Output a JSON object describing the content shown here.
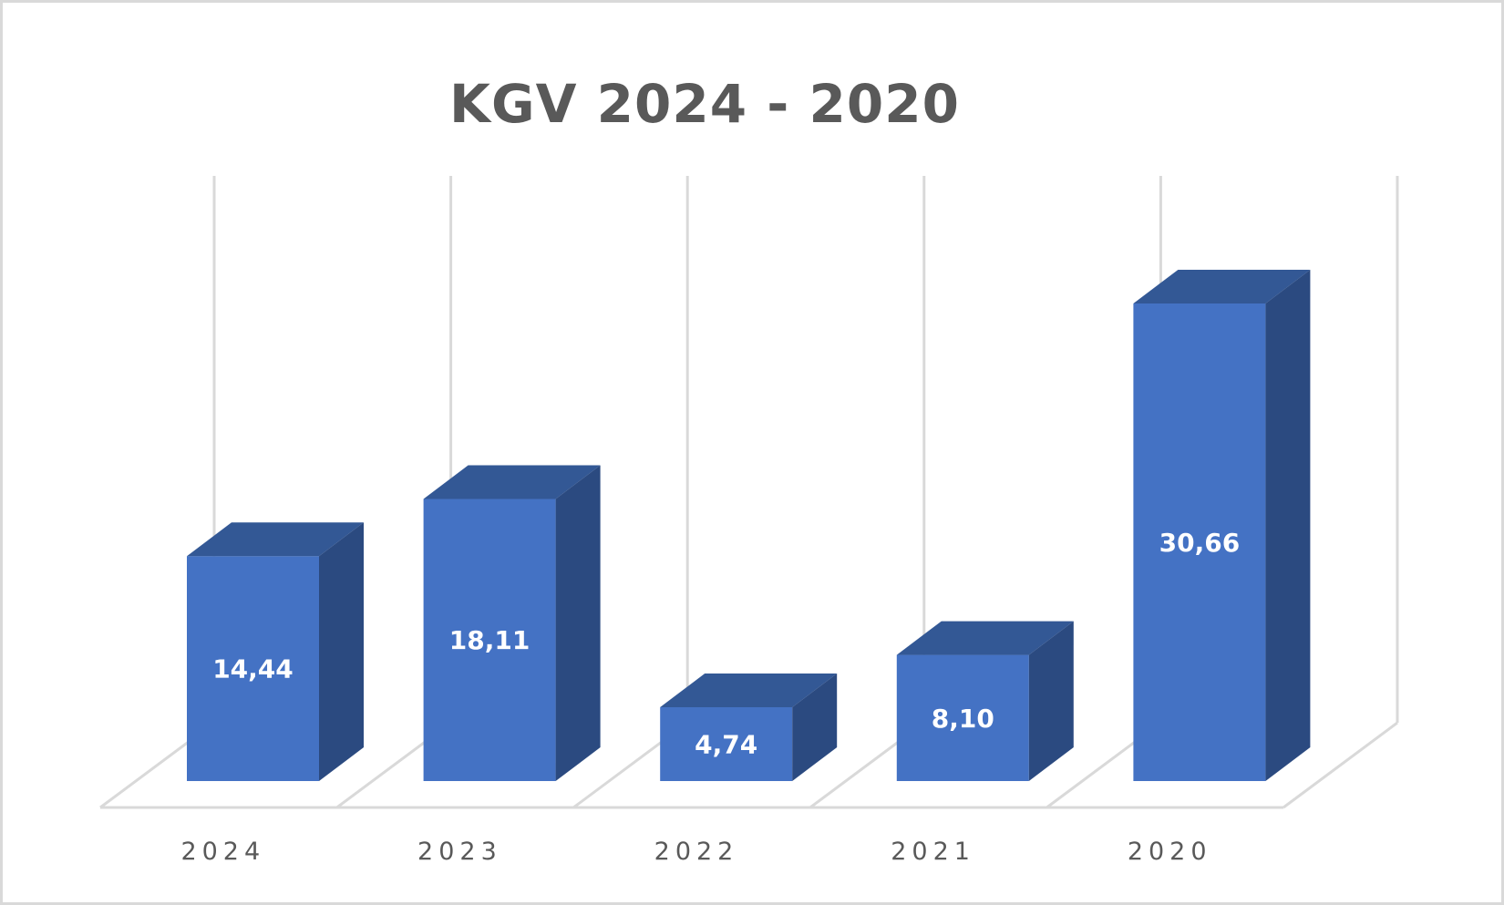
{
  "chart_data": {
    "type": "bar",
    "title": "KGV 2024 - 2020",
    "categories": [
      "2024",
      "2023",
      "2022",
      "2021",
      "2020"
    ],
    "values": [
      14.44,
      18.11,
      4.74,
      8.1,
      30.66
    ],
    "value_labels": [
      "14,44",
      "18,11",
      "4,74",
      "8,10",
      "30,66"
    ],
    "xlabel": "",
    "ylabel": "",
    "ylim": [
      0,
      35
    ],
    "grid": true,
    "style": "3d-column",
    "legend": null,
    "colors": {
      "front": "#4472c4",
      "top": "#335895",
      "side": "#2b4a80",
      "grid": "#d9d9d9",
      "text": "#595959"
    }
  }
}
